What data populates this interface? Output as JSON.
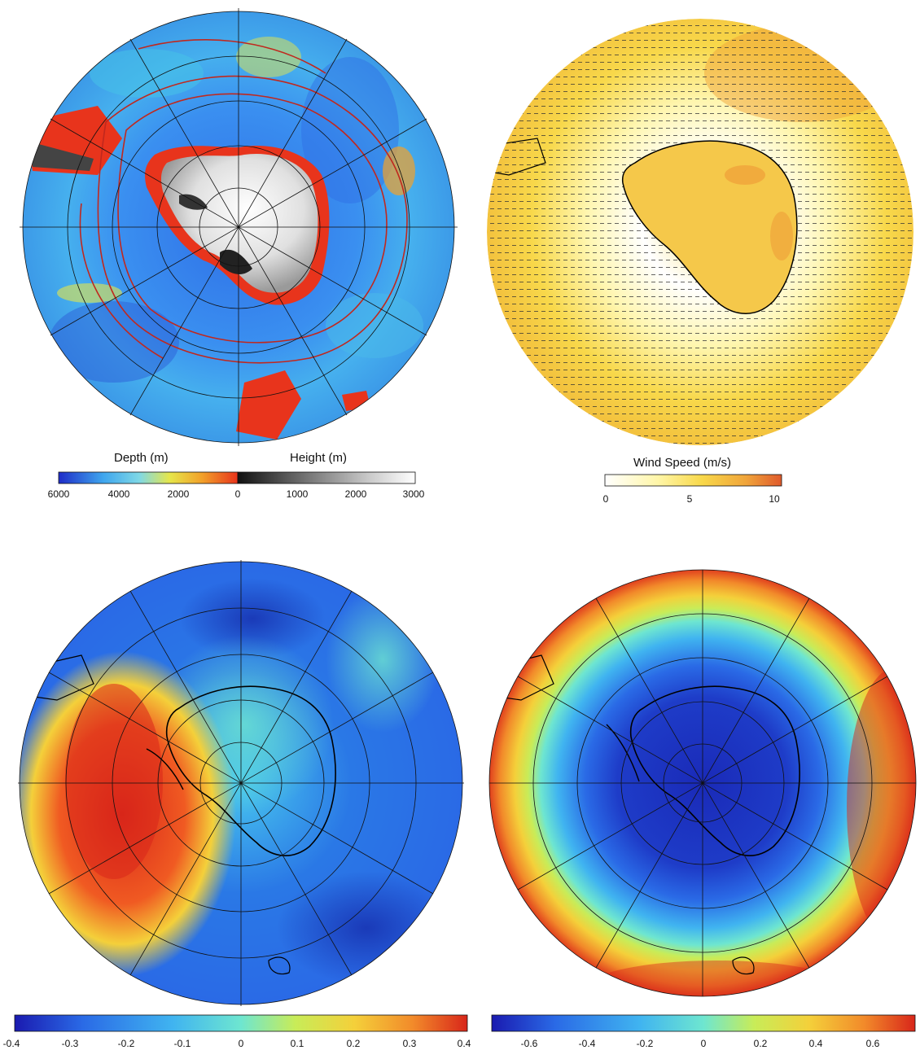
{
  "panels": {
    "bathymetry": {
      "depth_label": "Depth (m)",
      "height_label": "Height (m)",
      "ticks": [
        "6000",
        "4000",
        "2000",
        "0",
        "1000",
        "2000",
        "3000"
      ]
    },
    "wind": {
      "label": "Wind Speed (m/s)",
      "ticks": [
        "0",
        "5",
        "10"
      ]
    },
    "corr_left": {
      "ticks": [
        "-0.4",
        "-0.3",
        "-0.2",
        "-0.1",
        "0",
        "0.1",
        "0.2",
        "0.3",
        "0.4"
      ]
    },
    "corr_right": {
      "ticks": [
        "-0.6",
        "-0.4",
        "-0.2",
        "0",
        "0.2",
        "0.4",
        "0.6"
      ]
    }
  },
  "colors": {
    "depth_scale": [
      "#1e2cc8",
      "#2f6fe6",
      "#3fa6ee",
      "#7fd8e6",
      "#e6e64a",
      "#f2a12a",
      "#e8341c"
    ],
    "height_scale": [
      "#111111",
      "#555555",
      "#999999",
      "#d6d6d6",
      "#ffffff"
    ],
    "wind_scale": [
      "#ffffff",
      "#fff6a8",
      "#f8d84a",
      "#f0a43a",
      "#e05a2c"
    ],
    "jet_scale": [
      "#1a1ab0",
      "#2a6ae6",
      "#40b4f0",
      "#6ee6d0",
      "#c8ec58",
      "#f4d03a",
      "#f28a2a",
      "#d8261a"
    ],
    "coastline": "#000000",
    "contour": "#c0281e"
  }
}
